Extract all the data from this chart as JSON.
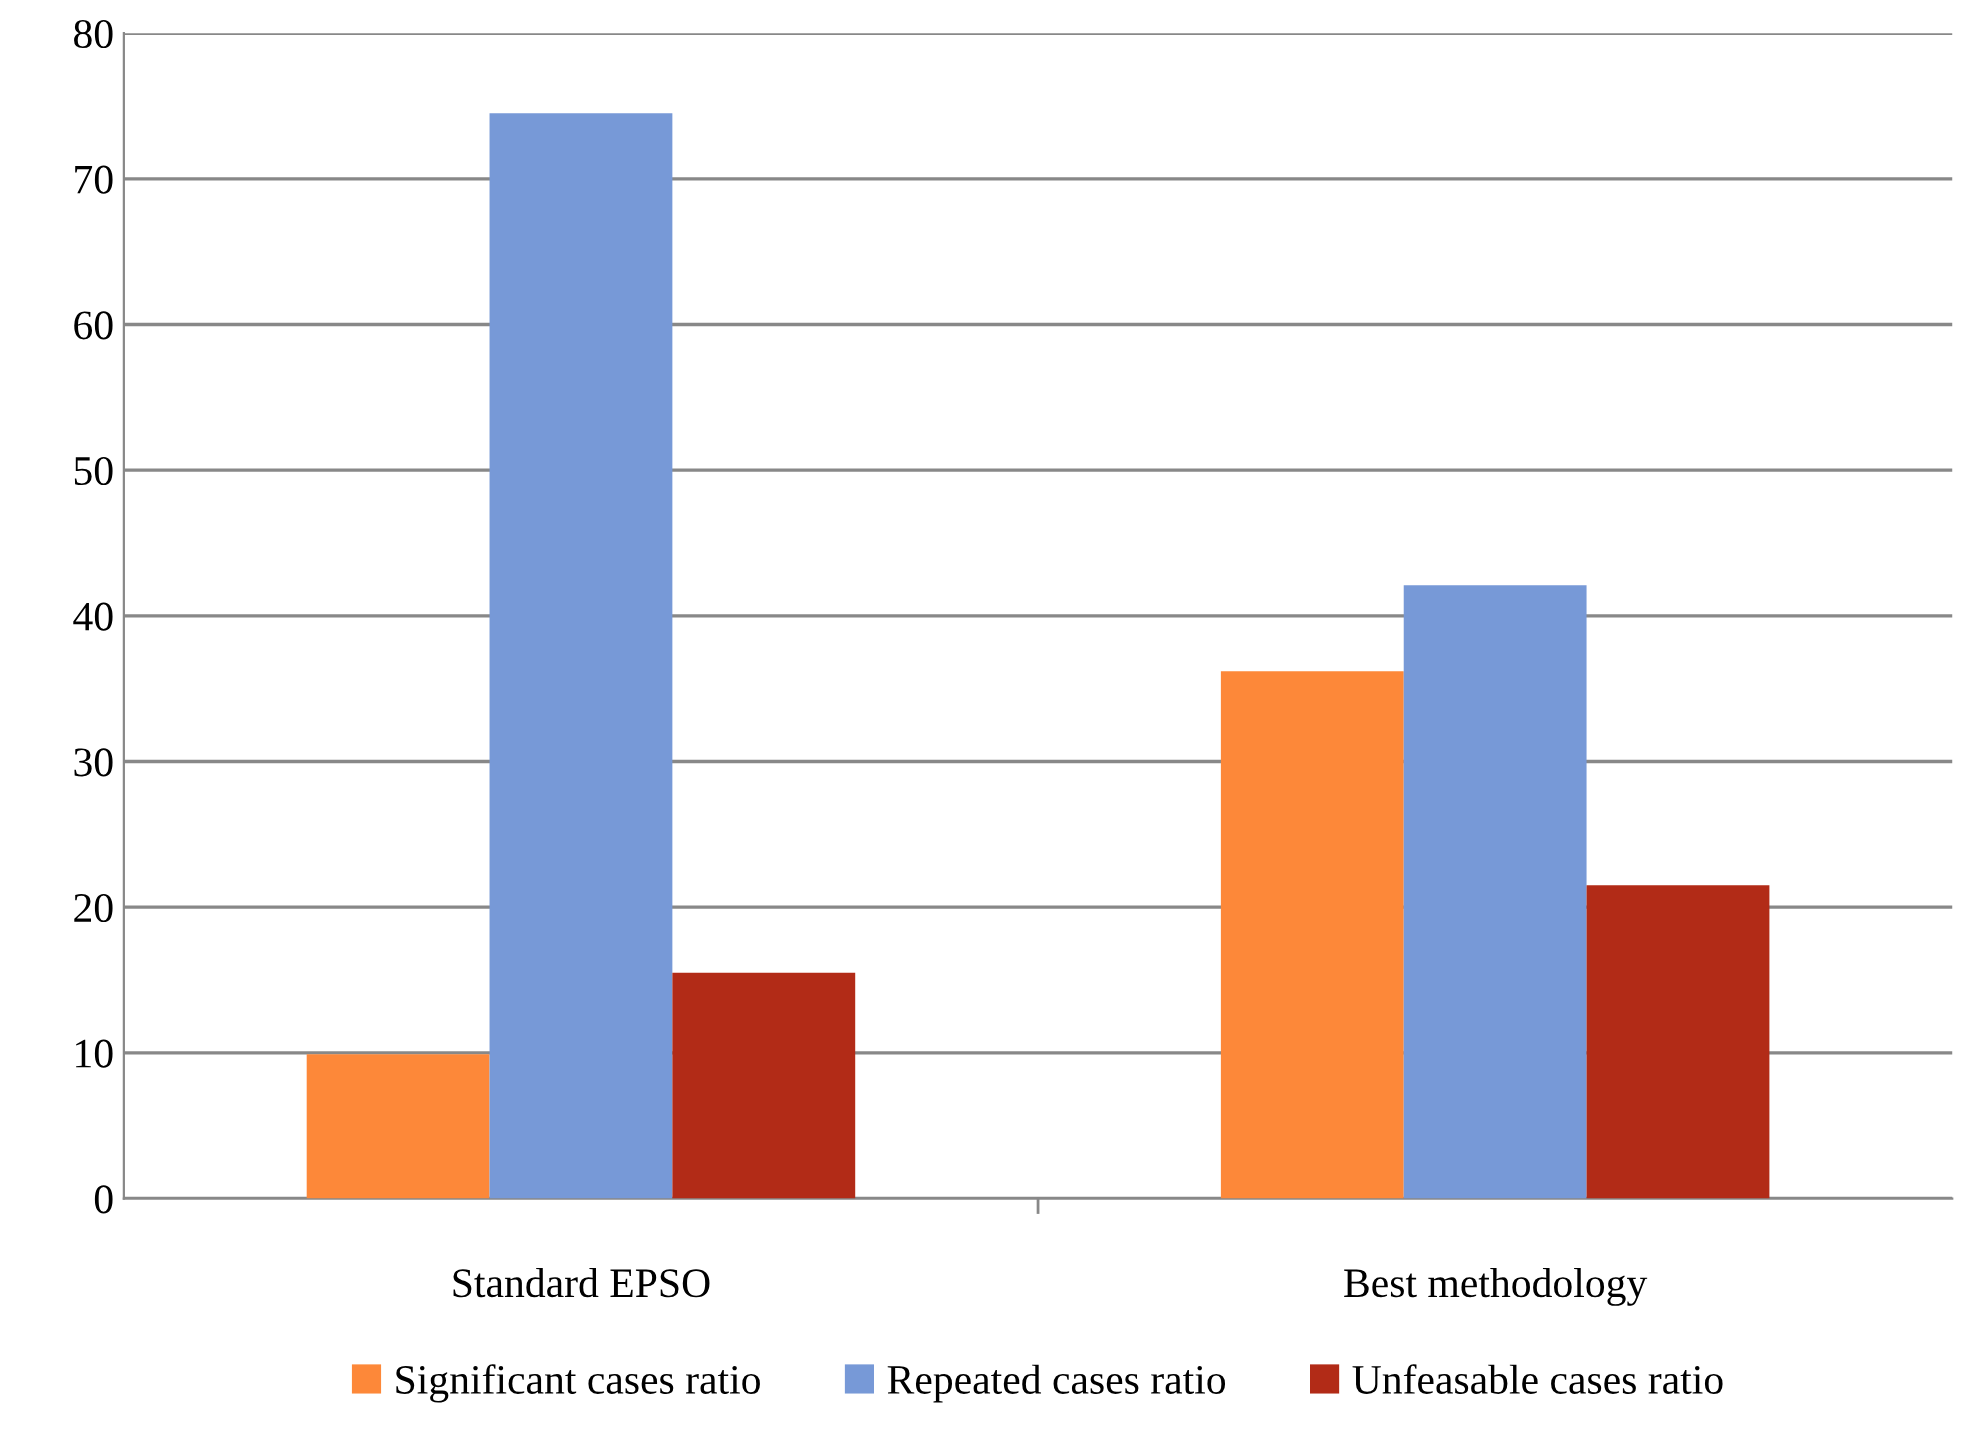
{
  "chart_data": {
    "type": "bar",
    "categories": [
      "Standard EPSO",
      "Best methodology"
    ],
    "series": [
      {
        "name": "Significant cases ratio",
        "color": "#fd8839",
        "values": [
          9.9,
          36.2
        ]
      },
      {
        "name": "Repeated cases ratio",
        "color": "#7799d7",
        "values": [
          74.5,
          42.1
        ]
      },
      {
        "name": "Unfeasable cases ratio",
        "color": "#b22b17",
        "values": [
          15.5,
          21.5
        ]
      }
    ],
    "ylim": [
      0,
      80
    ],
    "yticks": [
      0,
      10,
      20,
      30,
      40,
      50,
      60,
      70,
      80
    ],
    "grid": "y",
    "legend": "bottom"
  }
}
